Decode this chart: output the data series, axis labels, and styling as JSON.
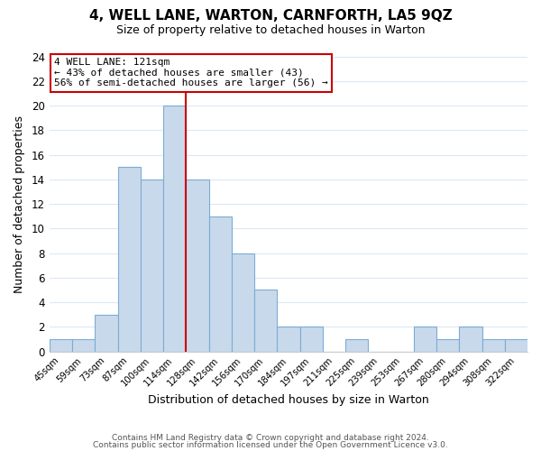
{
  "title": "4, WELL LANE, WARTON, CARNFORTH, LA5 9QZ",
  "subtitle": "Size of property relative to detached houses in Warton",
  "xlabel": "Distribution of detached houses by size in Warton",
  "ylabel": "Number of detached properties",
  "bar_labels": [
    "45sqm",
    "59sqm",
    "73sqm",
    "87sqm",
    "100sqm",
    "114sqm",
    "128sqm",
    "142sqm",
    "156sqm",
    "170sqm",
    "184sqm",
    "197sqm",
    "211sqm",
    "225sqm",
    "239sqm",
    "253sqm",
    "267sqm",
    "280sqm",
    "294sqm",
    "308sqm",
    "322sqm"
  ],
  "bar_values": [
    1,
    1,
    3,
    15,
    14,
    20,
    14,
    11,
    8,
    5,
    2,
    2,
    0,
    1,
    0,
    0,
    2,
    1,
    2,
    1,
    1
  ],
  "bar_color": "#c9d9ec",
  "bar_edge_color": "#7aadd4",
  "property_label": "4 WELL LANE: 121sqm",
  "annotation_line1": "← 43% of detached houses are smaller (43)",
  "annotation_line2": "56% of semi-detached houses are larger (56) →",
  "vline_color": "#cc0000",
  "annotation_box_color": "#ffffff",
  "annotation_box_edge_color": "#cc0000",
  "ylim": [
    0,
    24
  ],
  "yticks": [
    0,
    2,
    4,
    6,
    8,
    10,
    12,
    14,
    16,
    18,
    20,
    22,
    24
  ],
  "footer1": "Contains HM Land Registry data © Crown copyright and database right 2024.",
  "footer2": "Contains public sector information licensed under the Open Government Licence v3.0.",
  "background_color": "#ffffff",
  "grid_color": "#dce8f5"
}
